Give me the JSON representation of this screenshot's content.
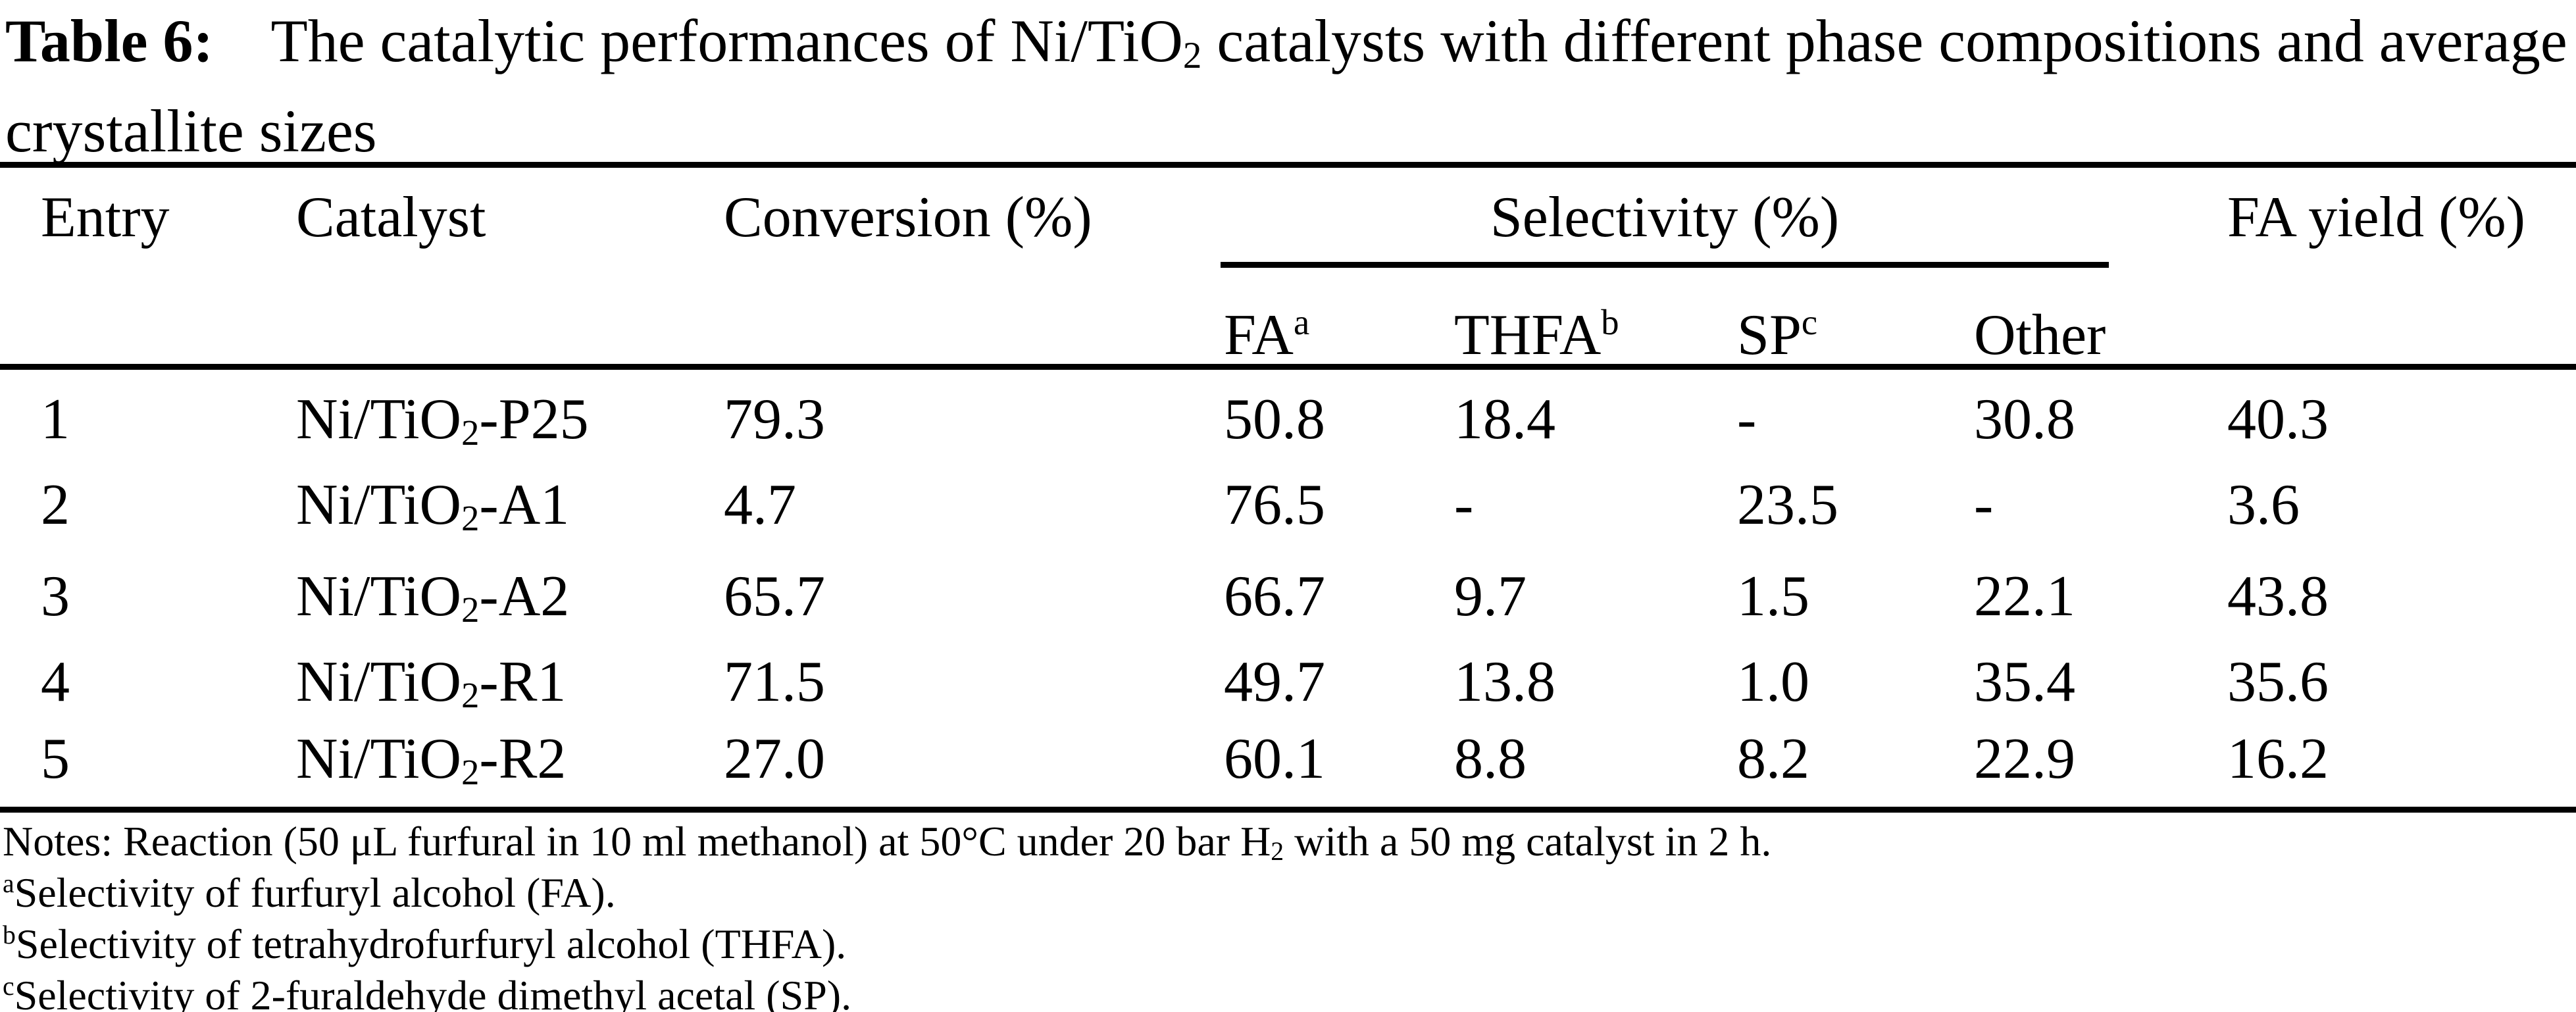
{
  "title": {
    "label": "Table 6:",
    "line1_pre": "The catalytic performances of Ni/TiO",
    "line1_sub": "2",
    "line1_post": " catalysts with different phase compositions and average",
    "line2": "crystallite sizes"
  },
  "table": {
    "headers": {
      "entry": "Entry",
      "catalyst": "Catalyst",
      "conversion": "Conversion (%)",
      "selectivity": "Selectivity (%)",
      "fa_yield": "FA yield (%)"
    },
    "subheaders": {
      "fa": "FA",
      "fa_sup": "a",
      "thfa": "THFA",
      "thfa_sup": "b",
      "sp": "SP",
      "sp_sup": "c",
      "other": "Other"
    },
    "rows": [
      {
        "entry": "1",
        "cat_pre": "Ni/TiO",
        "cat_sub": "2",
        "cat_post": "-P25",
        "conversion": "79.3",
        "fa": "50.8",
        "thfa": "18.4",
        "sp": "-",
        "other": "30.8",
        "yield": "40.3"
      },
      {
        "entry": "2",
        "cat_pre": "Ni/TiO",
        "cat_sub": "2",
        "cat_post": "-A1",
        "conversion": "4.7",
        "fa": "76.5",
        "thfa": "-",
        "sp": "23.5",
        "other": "-",
        "yield": "3.6"
      },
      {
        "entry": "3",
        "cat_pre": "Ni/TiO",
        "cat_sub": "2",
        "cat_post": "-A2",
        "conversion": "65.7",
        "fa": "66.7",
        "thfa": "9.7",
        "sp": "1.5",
        "other": "22.1",
        "yield": "43.8"
      },
      {
        "entry": "4",
        "cat_pre": "Ni/TiO",
        "cat_sub": "2",
        "cat_post": "-R1",
        "conversion": "71.5",
        "fa": "49.7",
        "thfa": "13.8",
        "sp": "1.0",
        "other": "35.4",
        "yield": "35.6"
      },
      {
        "entry": "5",
        "cat_pre": "Ni/TiO",
        "cat_sub": "2",
        "cat_post": "-R2",
        "conversion": "27.0",
        "fa": "60.1",
        "thfa": "8.8",
        "sp": "8.2",
        "other": "22.9",
        "yield": "16.2"
      }
    ]
  },
  "notes": {
    "line1_pre": "Notes: Reaction (50 μL furfural in 10 ml methanol) at 50°C under 20 bar H",
    "line1_sub": "2",
    "line1_post": " with a 50 mg catalyst in 2 h.",
    "footnotes": [
      {
        "sup": "a",
        "text": "Selectivity of furfuryl alcohol (FA)."
      },
      {
        "sup": "b",
        "text": "Selectivity of tetrahydrofurfuryl alcohol (THFA)."
      },
      {
        "sup": "c",
        "text": "Selectivity of 2-furaldehyde dimethyl acetal (SP)."
      }
    ]
  }
}
